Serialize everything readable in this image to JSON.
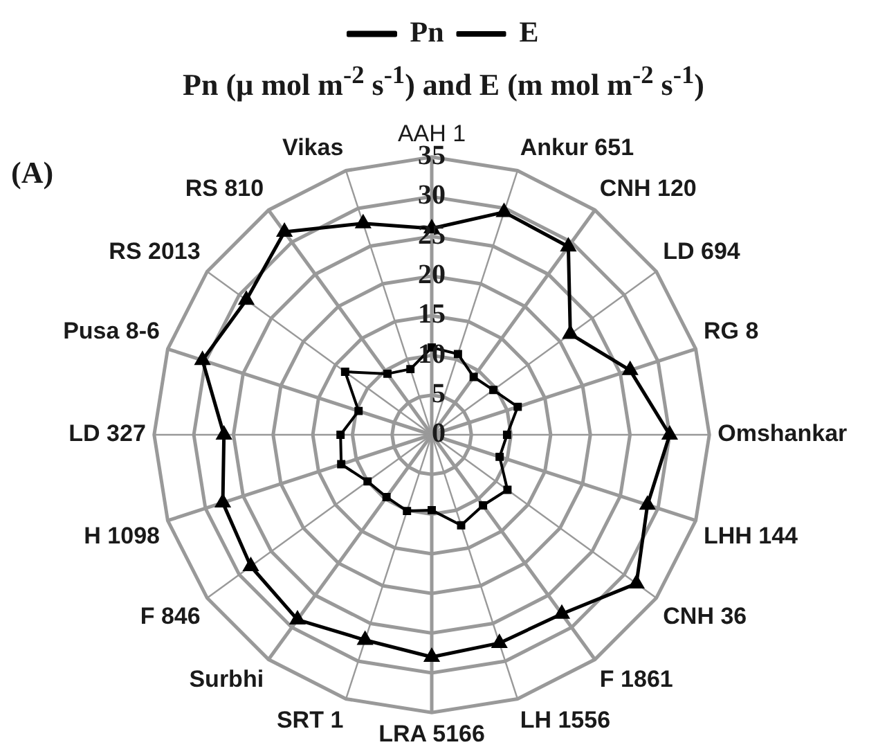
{
  "chart_data": {
    "type": "radar",
    "title": "Pn (µ mol m$^{-2}$ s$^{-1}$) and E (m mol m$^{-2}$ s$^{-1}$)",
    "annotations": [
      "(A)"
    ],
    "categories": [
      "AAH 1",
      "Ankur 651",
      "CNH 120",
      "LD 694",
      "RG 8",
      "Omshankar",
      "LHH 144",
      "CNH 36",
      "F 1861",
      "LH 1556",
      "LRA 5166",
      "SRT 1",
      "Surbhi",
      "F 846",
      "H 1098",
      "LD 327",
      "Pusa 8-6",
      "RS 2013",
      "RS 810",
      "Vikas"
    ],
    "series": [
      {
        "name": "Pn",
        "color": "#000000",
        "marker": "triangle",
        "values": [
          26,
          29.5,
          29.3,
          21.6,
          26.3,
          30,
          28.6,
          31.9,
          27.9,
          27.6,
          28,
          27.2,
          28.8,
          28.2,
          27.7,
          26.2,
          30.4,
          28.9,
          31.6,
          28
        ]
      },
      {
        "name": "E",
        "color": "#000000",
        "marker": "square",
        "values": [
          11,
          10.7,
          9,
          9.6,
          11.4,
          9.5,
          9,
          11.8,
          11,
          12,
          9.5,
          10.1,
          9.7,
          10,
          12,
          11.5,
          9.7,
          13.5,
          9.5,
          8.7
        ]
      }
    ],
    "ylim": [
      0,
      35
    ],
    "yticks": [
      0,
      5,
      10,
      15,
      20,
      25,
      30,
      35
    ],
    "grid": true,
    "legend": "top",
    "line_style": "solid"
  }
}
